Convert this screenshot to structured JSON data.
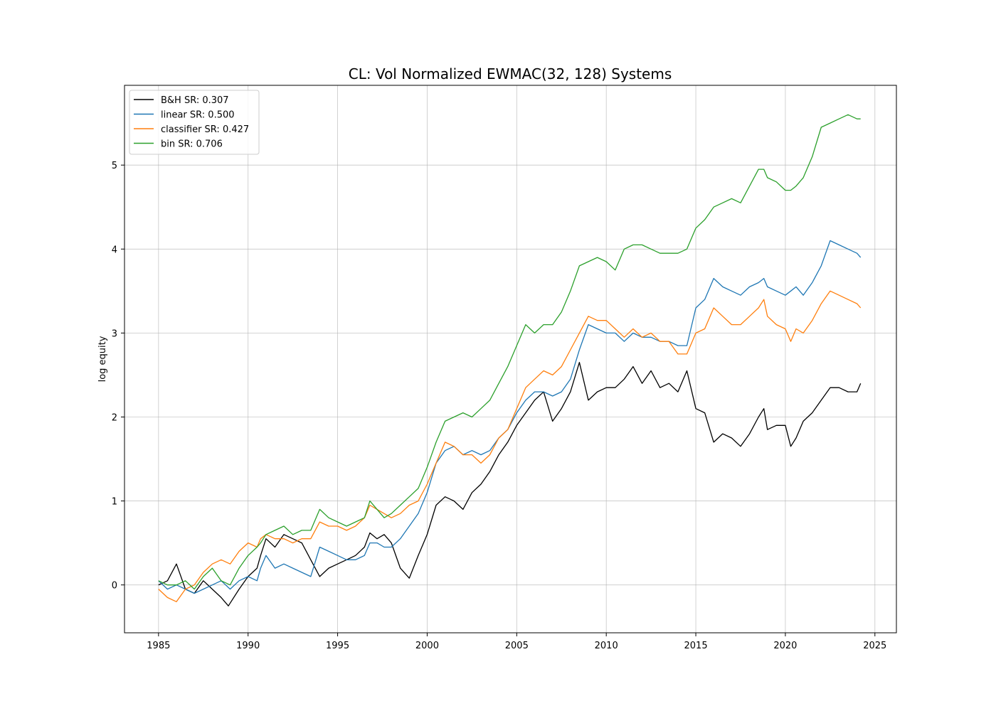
{
  "chart_data": {
    "type": "line",
    "title": "CL: Vol Normalized EWMAC(32, 128) Systems",
    "xlabel": "",
    "ylabel": "log equity",
    "xlim": [
      1983.1,
      2026.2
    ],
    "ylim": [
      -0.57,
      5.95
    ],
    "xticks": [
      1985,
      1990,
      1995,
      2000,
      2005,
      2010,
      2015,
      2020,
      2025
    ],
    "yticks": [
      0,
      1,
      2,
      3,
      4,
      5
    ],
    "grid": true,
    "legend_position": "upper-left",
    "series": [
      {
        "name": "B&H SR: 0.307",
        "color": "#000000",
        "x": [
          1985.0,
          1985.5,
          1986.0,
          1986.5,
          1987.0,
          1987.5,
          1988.0,
          1988.5,
          1988.9,
          1989.5,
          1990.0,
          1990.5,
          1990.7,
          1991.0,
          1991.5,
          1992.0,
          1992.5,
          1993.0,
          1993.5,
          1994.0,
          1994.5,
          1995.0,
          1995.5,
          1996.0,
          1996.5,
          1996.8,
          1997.2,
          1997.6,
          1998.0,
          1998.5,
          1999.0,
          1999.5,
          2000.0,
          2000.5,
          2001.0,
          2001.5,
          2002.0,
          2002.5,
          2003.0,
          2003.5,
          2004.0,
          2004.5,
          2005.0,
          2005.5,
          2006.0,
          2006.5,
          2007.0,
          2007.5,
          2008.0,
          2008.5,
          2009.0,
          2009.5,
          2010.0,
          2010.5,
          2011.0,
          2011.5,
          2012.0,
          2012.5,
          2013.0,
          2013.5,
          2014.0,
          2014.5,
          2015.0,
          2015.5,
          2016.0,
          2016.5,
          2017.0,
          2017.5,
          2018.0,
          2018.5,
          2018.8,
          2019.0,
          2019.5,
          2020.0,
          2020.3,
          2020.6,
          2021.0,
          2021.5,
          2022.0,
          2022.5,
          2023.0,
          2023.5,
          2024.0,
          2024.2
        ],
        "y": [
          0.0,
          0.05,
          0.25,
          -0.05,
          -0.1,
          0.05,
          -0.05,
          -0.15,
          -0.25,
          -0.05,
          0.1,
          0.2,
          0.35,
          0.55,
          0.45,
          0.6,
          0.55,
          0.5,
          0.3,
          0.1,
          0.2,
          0.25,
          0.3,
          0.35,
          0.45,
          0.62,
          0.55,
          0.6,
          0.5,
          0.2,
          0.08,
          0.35,
          0.6,
          0.95,
          1.05,
          1.0,
          0.9,
          1.1,
          1.2,
          1.35,
          1.55,
          1.7,
          1.9,
          2.05,
          2.2,
          2.3,
          1.95,
          2.1,
          2.3,
          2.65,
          2.2,
          2.3,
          2.35,
          2.35,
          2.45,
          2.6,
          2.4,
          2.55,
          2.35,
          2.4,
          2.3,
          2.55,
          2.1,
          2.05,
          1.7,
          1.8,
          1.75,
          1.65,
          1.8,
          2.0,
          2.1,
          1.85,
          1.9,
          1.9,
          1.65,
          1.75,
          1.95,
          2.05,
          2.2,
          2.35,
          2.35,
          2.3,
          2.3,
          2.4
        ]
      },
      {
        "name": "linear SR: 0.500",
        "color": "#1f77b4",
        "x": [
          1985.0,
          1985.5,
          1986.0,
          1986.5,
          1987.0,
          1987.5,
          1988.0,
          1988.5,
          1989.0,
          1989.5,
          1990.0,
          1990.5,
          1990.7,
          1991.0,
          1991.5,
          1992.0,
          1992.5,
          1993.0,
          1993.5,
          1994.0,
          1994.5,
          1995.0,
          1995.5,
          1996.0,
          1996.5,
          1996.8,
          1997.2,
          1997.6,
          1998.0,
          1998.5,
          1999.0,
          1999.5,
          2000.0,
          2000.5,
          2001.0,
          2001.5,
          2002.0,
          2002.5,
          2003.0,
          2003.5,
          2004.0,
          2004.5,
          2005.0,
          2005.5,
          2006.0,
          2006.5,
          2007.0,
          2007.5,
          2008.0,
          2008.5,
          2009.0,
          2009.5,
          2010.0,
          2010.5,
          2011.0,
          2011.5,
          2012.0,
          2012.5,
          2013.0,
          2013.5,
          2014.0,
          2014.5,
          2015.0,
          2015.5,
          2016.0,
          2016.5,
          2017.0,
          2017.5,
          2018.0,
          2018.5,
          2018.8,
          2019.0,
          2019.5,
          2020.0,
          2020.3,
          2020.6,
          2021.0,
          2021.5,
          2022.0,
          2022.5,
          2023.0,
          2023.5,
          2024.0,
          2024.2
        ],
        "y": [
          0.05,
          -0.05,
          0.0,
          -0.05,
          -0.1,
          -0.05,
          0.0,
          0.05,
          -0.05,
          0.05,
          0.1,
          0.05,
          0.2,
          0.35,
          0.2,
          0.25,
          0.2,
          0.15,
          0.1,
          0.45,
          0.4,
          0.35,
          0.3,
          0.3,
          0.35,
          0.5,
          0.5,
          0.45,
          0.45,
          0.55,
          0.7,
          0.85,
          1.1,
          1.45,
          1.6,
          1.65,
          1.55,
          1.6,
          1.55,
          1.6,
          1.75,
          1.85,
          2.05,
          2.2,
          2.3,
          2.3,
          2.25,
          2.3,
          2.45,
          2.8,
          3.1,
          3.05,
          3.0,
          3.0,
          2.9,
          3.0,
          2.95,
          2.95,
          2.9,
          2.9,
          2.85,
          2.85,
          3.3,
          3.4,
          3.65,
          3.55,
          3.5,
          3.45,
          3.55,
          3.6,
          3.65,
          3.55,
          3.5,
          3.45,
          3.5,
          3.55,
          3.45,
          3.6,
          3.8,
          4.1,
          4.05,
          4.0,
          3.95,
          3.9
        ]
      },
      {
        "name": "classifier SR: 0.427",
        "color": "#ff7f0e",
        "x": [
          1985.0,
          1985.5,
          1986.0,
          1986.5,
          1987.0,
          1987.5,
          1988.0,
          1988.5,
          1989.0,
          1989.5,
          1990.0,
          1990.5,
          1990.7,
          1991.0,
          1991.5,
          1992.0,
          1992.5,
          1993.0,
          1993.5,
          1994.0,
          1994.5,
          1995.0,
          1995.5,
          1996.0,
          1996.5,
          1996.8,
          1997.2,
          1997.6,
          1998.0,
          1998.5,
          1999.0,
          1999.5,
          2000.0,
          2000.5,
          2001.0,
          2001.5,
          2002.0,
          2002.5,
          2003.0,
          2003.5,
          2004.0,
          2004.5,
          2005.0,
          2005.5,
          2006.0,
          2006.5,
          2007.0,
          2007.5,
          2008.0,
          2008.5,
          2009.0,
          2009.5,
          2010.0,
          2010.5,
          2011.0,
          2011.5,
          2012.0,
          2012.5,
          2013.0,
          2013.5,
          2014.0,
          2014.5,
          2015.0,
          2015.5,
          2016.0,
          2016.5,
          2017.0,
          2017.5,
          2018.0,
          2018.5,
          2018.8,
          2019.0,
          2019.5,
          2020.0,
          2020.3,
          2020.6,
          2021.0,
          2021.5,
          2022.0,
          2022.5,
          2023.0,
          2023.5,
          2024.0,
          2024.2
        ],
        "y": [
          -0.05,
          -0.15,
          -0.2,
          -0.05,
          0.0,
          0.15,
          0.25,
          0.3,
          0.25,
          0.4,
          0.5,
          0.45,
          0.55,
          0.6,
          0.55,
          0.55,
          0.5,
          0.55,
          0.55,
          0.75,
          0.7,
          0.7,
          0.65,
          0.7,
          0.8,
          0.95,
          0.9,
          0.85,
          0.8,
          0.85,
          0.95,
          1.0,
          1.2,
          1.45,
          1.7,
          1.65,
          1.55,
          1.55,
          1.45,
          1.55,
          1.75,
          1.85,
          2.1,
          2.35,
          2.45,
          2.55,
          2.5,
          2.6,
          2.8,
          3.0,
          3.2,
          3.15,
          3.15,
          3.05,
          2.95,
          3.05,
          2.95,
          3.0,
          2.9,
          2.9,
          2.75,
          2.75,
          3.0,
          3.05,
          3.3,
          3.2,
          3.1,
          3.1,
          3.2,
          3.3,
          3.4,
          3.2,
          3.1,
          3.05,
          2.9,
          3.05,
          3.0,
          3.15,
          3.35,
          3.5,
          3.45,
          3.4,
          3.35,
          3.3
        ]
      },
      {
        "name": "bin SR: 0.706",
        "color": "#2ca02c",
        "x": [
          1985.0,
          1985.5,
          1986.0,
          1986.5,
          1987.0,
          1987.5,
          1988.0,
          1988.5,
          1989.0,
          1989.5,
          1990.0,
          1990.5,
          1990.7,
          1991.0,
          1991.5,
          1992.0,
          1992.5,
          1993.0,
          1993.5,
          1994.0,
          1994.5,
          1995.0,
          1995.5,
          1996.0,
          1996.5,
          1996.8,
          1997.2,
          1997.6,
          1998.0,
          1998.5,
          1999.0,
          1999.5,
          2000.0,
          2000.5,
          2001.0,
          2001.5,
          2002.0,
          2002.5,
          2003.0,
          2003.5,
          2004.0,
          2004.5,
          2005.0,
          2005.5,
          2006.0,
          2006.5,
          2007.0,
          2007.5,
          2008.0,
          2008.5,
          2009.0,
          2009.5,
          2010.0,
          2010.5,
          2011.0,
          2011.5,
          2012.0,
          2012.5,
          2013.0,
          2013.5,
          2014.0,
          2014.5,
          2015.0,
          2015.5,
          2016.0,
          2016.5,
          2017.0,
          2017.5,
          2018.0,
          2018.5,
          2018.8,
          2019.0,
          2019.5,
          2020.0,
          2020.3,
          2020.6,
          2021.0,
          2021.5,
          2022.0,
          2022.5,
          2023.0,
          2023.5,
          2024.0,
          2024.2
        ],
        "y": [
          0.05,
          0.0,
          0.0,
          0.05,
          -0.05,
          0.1,
          0.2,
          0.05,
          0.0,
          0.2,
          0.35,
          0.45,
          0.5,
          0.6,
          0.65,
          0.7,
          0.6,
          0.65,
          0.65,
          0.9,
          0.8,
          0.75,
          0.7,
          0.75,
          0.8,
          1.0,
          0.9,
          0.8,
          0.85,
          0.95,
          1.05,
          1.15,
          1.4,
          1.7,
          1.95,
          2.0,
          2.05,
          2.0,
          2.1,
          2.2,
          2.4,
          2.6,
          2.85,
          3.1,
          3.0,
          3.1,
          3.1,
          3.25,
          3.5,
          3.8,
          3.85,
          3.9,
          3.85,
          3.75,
          4.0,
          4.05,
          4.05,
          4.0,
          3.95,
          3.95,
          3.95,
          4.0,
          4.25,
          4.35,
          4.5,
          4.55,
          4.6,
          4.55,
          4.75,
          4.95,
          4.95,
          4.85,
          4.8,
          4.7,
          4.7,
          4.75,
          4.85,
          5.1,
          5.45,
          5.5,
          5.55,
          5.6,
          5.55,
          5.55
        ]
      }
    ]
  }
}
